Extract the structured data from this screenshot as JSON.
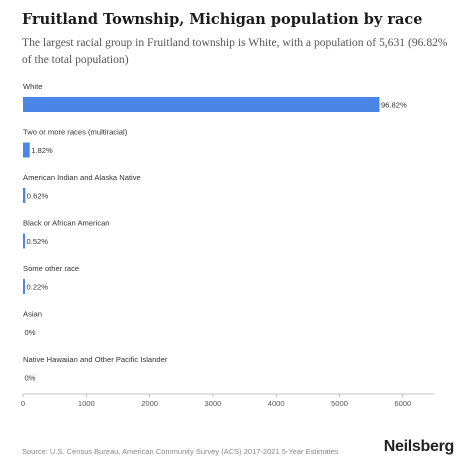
{
  "header": {
    "title": "Fruitland Township, Michigan population by race",
    "subtitle": "The largest racial group in Fruitland township is White, with a population of 5,631 (96.82% of the total population)"
  },
  "footer": {
    "source": "Source: U.S. Census Bureau, American Community Survey (ACS) 2017-2021 5-Year Estimates",
    "brand": "Neilsberg"
  },
  "chart_data": {
    "type": "bar",
    "orientation": "horizontal",
    "categories": [
      "White",
      "Two or more races (multiracial)",
      "American Indian and Alaska Native",
      "Black or African American",
      "Some other race",
      "Asian",
      "Native Hawaiian and Other Pacific Islander"
    ],
    "values": [
      5631,
      106,
      36,
      30,
      13,
      0,
      0
    ],
    "value_labels": [
      "96.82%",
      "1.82%",
      "0.62%",
      "0.52%",
      "0.22%",
      "0%",
      "0%"
    ],
    "xlim": [
      0,
      6500
    ],
    "xticks": [
      0,
      1000,
      2000,
      3000,
      4000,
      5000,
      6000
    ],
    "bar_color": "#4a86e8",
    "grid": false
  }
}
